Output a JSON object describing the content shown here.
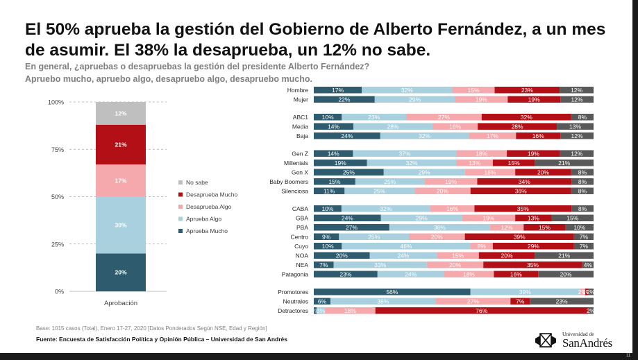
{
  "title": "El 50% aprueba la gestión del Gobierno de Alberto Fernández, a un mes de asumir.  El 38% la desaprueba, un 12% no sabe.",
  "question": {
    "line1": "En general, ¿apruebas o desapruebas la gestión del presidente Alberto Fernández?",
    "line2": "Apruebo mucho, apruebo algo, desapruebo algo, desapruebo mucho."
  },
  "footer": {
    "base": "Base: 1015 casos (Total), Enero 17-27, 2020 [Datos Ponderados Según NSE, Edad y Región]",
    "source": "Fuente: Encuesta de Satisfacción Política y Opinión Pública – Universidad de San Andrés"
  },
  "logo": {
    "small": "Universidad de",
    "big": "SanAndrés"
  },
  "page_number": "11",
  "colors": {
    "aprueba_mucho": "#2e5b6e",
    "aprueba_algo": "#a8d0de",
    "desaprueba_algo": "#f5a9ad",
    "desaprueba_mucho": "#b30f16",
    "no_sabe": "#bfbfbf",
    "no_sabe_rows": "#595959"
  },
  "chart_data": [
    {
      "type": "bar",
      "stacked": true,
      "categories": [
        "Aprobación"
      ],
      "ylim": [
        0,
        100
      ],
      "yticks": [
        "0%",
        "25%",
        "50%",
        "75%",
        "100%"
      ],
      "grid": true,
      "legend_position": "right",
      "series": [
        {
          "name": "Aprueba Mucho",
          "values": [
            20
          ],
          "label": "20%",
          "color": "#2e5b6e"
        },
        {
          "name": "Aprueba Algo",
          "values": [
            30
          ],
          "label": "30%",
          "color": "#a8d0de"
        },
        {
          "name": "Desaprueba Algo",
          "values": [
            17
          ],
          "label": "17%",
          "color": "#f5a9ad"
        },
        {
          "name": "Desaprueba Mucho",
          "values": [
            21
          ],
          "label": "21%",
          "color": "#b30f16"
        },
        {
          "name": "No sabe",
          "values": [
            12
          ],
          "label": "12%",
          "color": "#bfbfbf"
        }
      ],
      "legend_order": [
        "No sabe",
        "Desaprueba Mucho",
        "Desaprueba Algo",
        "Aprueba Algo",
        "Aprueba Mucho"
      ]
    },
    {
      "type": "bar",
      "orientation": "horizontal",
      "stacked_percent": true,
      "series_order": [
        "Aprueba Mucho",
        "Aprueba Algo",
        "Desaprueba Algo",
        "Desaprueba Mucho",
        "No sabe"
      ],
      "groups": [
        {
          "rows": [
            {
              "label": "Hombre",
              "values": [
                17,
                32,
                15,
                23,
                12
              ]
            },
            {
              "label": "Mujer",
              "values": [
                22,
                29,
                19,
                19,
                12
              ]
            }
          ]
        },
        {
          "rows": [
            {
              "label": "ABC1",
              "values": [
                10,
                23,
                27,
                32,
                8
              ]
            },
            {
              "label": "Media",
              "values": [
                14,
                28,
                16,
                28,
                13
              ]
            },
            {
              "label": "Baja",
              "values": [
                24,
                32,
                17,
                16,
                12
              ]
            }
          ]
        },
        {
          "rows": [
            {
              "label": "Gen Z",
              "values": [
                14,
                37,
                18,
                19,
                12
              ]
            },
            {
              "label": "Millenials",
              "values": [
                19,
                32,
                13,
                15,
                21
              ]
            },
            {
              "label": "Gen X",
              "values": [
                25,
                29,
                18,
                20,
                8
              ]
            },
            {
              "label": "Baby Boomers",
              "values": [
                15,
                25,
                19,
                34,
                8
              ]
            },
            {
              "label": "Silenciosa",
              "values": [
                11,
                25,
                20,
                36,
                8
              ]
            }
          ]
        },
        {
          "rows": [
            {
              "label": "CABA",
              "values": [
                10,
                32,
                16,
                35,
                8
              ]
            },
            {
              "label": "GBA",
              "values": [
                24,
                29,
                19,
                13,
                15
              ]
            },
            {
              "label": "PBA",
              "values": [
                27,
                36,
                12,
                15,
                10
              ]
            },
            {
              "label": "Centro",
              "values": [
                9,
                25,
                20,
                39,
                7
              ]
            },
            {
              "label": "Cuyo",
              "values": [
                10,
                46,
                8,
                29,
                7
              ]
            },
            {
              "label": "NOA",
              "values": [
                20,
                24,
                15,
                20,
                21
              ]
            },
            {
              "label": "NEA",
              "values": [
                7,
                33,
                20,
                35,
                4
              ]
            },
            {
              "label": "Patagonia",
              "values": [
                23,
                24,
                18,
                16,
                20
              ]
            }
          ]
        },
        {
          "rows": [
            {
              "label": "Promotores",
              "values": [
                56,
                39,
                2,
                1,
                2
              ]
            },
            {
              "label": "Neutrales",
              "values": [
                6,
                38,
                27,
                7,
                23
              ]
            },
            {
              "label": "Detractores",
              "values": [
                1,
                3,
                18,
                76,
                2
              ]
            }
          ]
        }
      ]
    }
  ]
}
